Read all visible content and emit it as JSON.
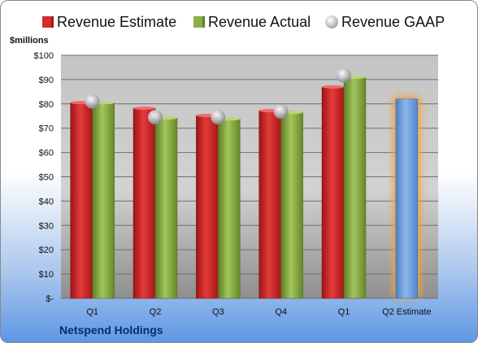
{
  "chart_data": {
    "type": "bar",
    "units_label": "$millions",
    "categories": [
      "Q1",
      "Q2",
      "Q3",
      "Q4",
      "Q1",
      "Q2 Estimate"
    ],
    "ylim": [
      0,
      100
    ],
    "yticks": [
      0,
      10,
      20,
      30,
      40,
      50,
      60,
      70,
      80,
      90,
      100
    ],
    "ytick_labels": [
      "$-",
      "$10",
      "$20",
      "$30",
      "$40",
      "$50",
      "$60",
      "$70",
      "$80",
      "$90",
      "$100"
    ],
    "grid": true,
    "legend_position": "top",
    "series": [
      {
        "name": "Revenue Estimate",
        "kind": "bar",
        "color": "#d42d2d",
        "values": [
          80.5,
          78.2,
          75.2,
          77.2,
          87.0,
          82.0
        ]
      },
      {
        "name": "Revenue Actual",
        "kind": "bar",
        "color": "#8bad4a",
        "values": [
          80.5,
          74.2,
          73.8,
          76.5,
          91.0,
          null
        ]
      },
      {
        "name": "Revenue GAAP",
        "kind": "marker",
        "color": "#b9bcc4",
        "values": [
          81.0,
          74.5,
          74.5,
          76.8,
          91.7,
          null
        ]
      }
    ],
    "highlight": {
      "category_index": 5,
      "bar_color": "#6c9fd8",
      "glow_color": "#f2a33a"
    }
  },
  "footer": {
    "company": "Netspend Holdings"
  }
}
